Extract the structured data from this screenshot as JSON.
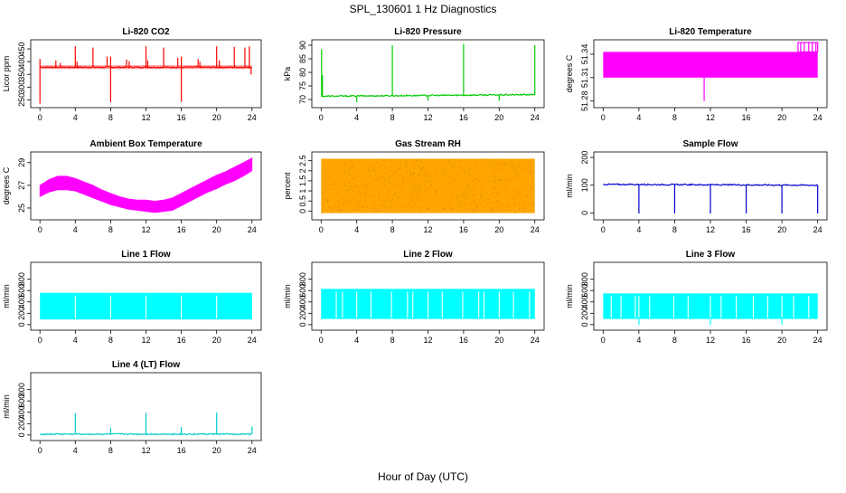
{
  "figure": {
    "title": "SPL_130601  1 Hz Diagnostics",
    "xlabel": "Hour of Day (UTC)"
  },
  "chart_data": [
    {
      "type": "line",
      "title": "Li-820 CO2",
      "ylabel": "Licor ppm",
      "color": "#ff0000",
      "xlim": [
        0,
        24
      ],
      "xticks": [
        0,
        4,
        8,
        12,
        16,
        20,
        24
      ],
      "ylim": [
        230,
        475
      ],
      "yticks": [
        250,
        300,
        350,
        400,
        450
      ],
      "baseline": 378,
      "band": [
        371,
        386
      ],
      "spikes": [
        {
          "x": 0.0,
          "y": 235
        },
        {
          "x": 0.0,
          "y": 410
        },
        {
          "x": 1.8,
          "y": 405
        },
        {
          "x": 2.3,
          "y": 395
        },
        {
          "x": 4.0,
          "y": 460
        },
        {
          "x": 4.2,
          "y": 400
        },
        {
          "x": 6.0,
          "y": 455
        },
        {
          "x": 7.6,
          "y": 420
        },
        {
          "x": 8.0,
          "y": 240
        },
        {
          "x": 8.0,
          "y": 420
        },
        {
          "x": 9.8,
          "y": 408
        },
        {
          "x": 10.1,
          "y": 402
        },
        {
          "x": 12.0,
          "y": 460
        },
        {
          "x": 12.2,
          "y": 405
        },
        {
          "x": 14.0,
          "y": 455
        },
        {
          "x": 15.6,
          "y": 415
        },
        {
          "x": 16.0,
          "y": 242
        },
        {
          "x": 16.0,
          "y": 420
        },
        {
          "x": 17.9,
          "y": 410
        },
        {
          "x": 18.1,
          "y": 400
        },
        {
          "x": 20.0,
          "y": 460
        },
        {
          "x": 20.3,
          "y": 405
        },
        {
          "x": 22.0,
          "y": 458
        },
        {
          "x": 23.2,
          "y": 455
        },
        {
          "x": 23.7,
          "y": 460
        },
        {
          "x": 23.9,
          "y": 350
        }
      ]
    },
    {
      "type": "line",
      "title": "Li-820 Pressure",
      "ylabel": "kPa",
      "color": "#00cc00",
      "xlim": [
        0,
        24
      ],
      "xticks": [
        0,
        4,
        8,
        12,
        16,
        20,
        24
      ],
      "ylim": [
        68,
        91
      ],
      "yticks": [
        70,
        75,
        80,
        85,
        90
      ],
      "baseline_start": 71.2,
      "baseline_end": 71.8,
      "spikes": [
        {
          "x": 0.05,
          "y": 88.5
        },
        {
          "x": 0.15,
          "y": 79.0
        },
        {
          "x": 4.0,
          "y": 69.0
        },
        {
          "x": 8.0,
          "y": 90.0
        },
        {
          "x": 12.0,
          "y": 69.5
        },
        {
          "x": 16.0,
          "y": 90.5
        },
        {
          "x": 20.0,
          "y": 69.5
        },
        {
          "x": 24.0,
          "y": 90.0
        }
      ]
    },
    {
      "type": "area",
      "title": "Li-820 Temperature",
      "ylabel": "degrees C",
      "color": "#ff00ff",
      "xlim": [
        0,
        24
      ],
      "xticks": [
        0,
        4,
        8,
        12,
        16,
        20,
        24
      ],
      "ylim": [
        51.275,
        51.355
      ],
      "yticks": [
        51.28,
        51.31,
        51.34
      ],
      "band": [
        51.31,
        51.343
      ],
      "spikes": [
        {
          "x": 11.3,
          "y": 51.28
        },
        {
          "x": 22.1,
          "y": 51.355
        },
        {
          "x": 22.5,
          "y": 51.355
        },
        {
          "x": 23.0,
          "y": 51.355
        },
        {
          "x": 23.4,
          "y": 51.355
        },
        {
          "x": 23.8,
          "y": 51.355
        }
      ]
    },
    {
      "type": "area",
      "title": "Ambient Box Temperature",
      "ylabel": "degrees C",
      "color": "#ff00ff",
      "xlim": [
        0,
        24
      ],
      "xticks": [
        0,
        4,
        8,
        12,
        16,
        20,
        24
      ],
      "ylim": [
        24.2,
        29.7
      ],
      "yticks": [
        25,
        27,
        29
      ],
      "x": [
        0,
        1,
        2,
        3,
        4,
        5,
        6,
        7,
        8,
        9,
        10,
        11,
        12,
        13,
        14,
        15,
        16,
        17,
        18,
        19,
        20,
        21,
        22,
        23,
        24
      ],
      "upper": [
        27.0,
        27.5,
        27.8,
        27.8,
        27.6,
        27.3,
        27.0,
        26.6,
        26.3,
        26.0,
        25.8,
        25.7,
        25.7,
        25.6,
        25.7,
        25.9,
        26.3,
        26.7,
        27.1,
        27.5,
        27.9,
        28.2,
        28.6,
        29.0,
        29.4
      ],
      "lower": [
        26.0,
        26.4,
        26.6,
        26.6,
        26.5,
        26.2,
        25.9,
        25.6,
        25.3,
        25.1,
        24.9,
        24.8,
        24.7,
        24.6,
        24.7,
        24.8,
        25.2,
        25.6,
        26.0,
        26.4,
        26.7,
        27.1,
        27.4,
        27.8,
        28.3
      ]
    },
    {
      "type": "area",
      "title": "Gas Stream RH",
      "ylabel": "percent",
      "color": "#ffa500",
      "xlim": [
        0,
        24
      ],
      "xticks": [
        0,
        4,
        8,
        12,
        16,
        20,
        24
      ],
      "ylim": [
        -0.3,
        2.8
      ],
      "yticks": [
        0.0,
        0.5,
        1.0,
        1.5,
        2.0,
        2.5
      ],
      "band": [
        -0.1,
        2.6
      ]
    },
    {
      "type": "line",
      "title": "Sample Flow",
      "ylabel": "ml/min",
      "color": "#0000cc",
      "xlim": [
        0,
        24
      ],
      "xticks": [
        0,
        4,
        8,
        12,
        16,
        20,
        24
      ],
      "ylim": [
        -15,
        210
      ],
      "yticks": [
        0,
        100,
        200
      ],
      "baseline_start": 103,
      "baseline_end": 100,
      "spikes": [
        {
          "x": 4.0,
          "y": -2
        },
        {
          "x": 8.0,
          "y": -2
        },
        {
          "x": 12.0,
          "y": -2
        },
        {
          "x": 16.0,
          "y": -2
        },
        {
          "x": 20.0,
          "y": -2
        },
        {
          "x": 24.0,
          "y": -2
        }
      ]
    },
    {
      "type": "area",
      "title": "Line 1 Flow",
      "ylabel": "ml/min",
      "color": "#00ffff",
      "xlim": [
        0,
        24
      ],
      "xticks": [
        0,
        4,
        8,
        12,
        16,
        20,
        24
      ],
      "ylim": [
        -50,
        1050
      ],
      "yticks": [
        0,
        200,
        400,
        600,
        800
      ],
      "band": [
        90,
        560
      ],
      "gaps": [
        4.0,
        8.0,
        12.0,
        16.0,
        20.0
      ]
    },
    {
      "type": "area",
      "title": "Line 2 Flow",
      "ylabel": "ml/min",
      "color": "#00ffff",
      "xlim": [
        0,
        24
      ],
      "xticks": [
        0,
        4,
        8,
        12,
        16,
        20,
        24
      ],
      "ylim": [
        -50,
        1050
      ],
      "yticks": [
        0,
        200,
        400,
        600,
        800
      ],
      "band": [
        100,
        630
      ],
      "gaps": [
        1.7,
        2.4,
        4.0,
        5.6,
        7.9,
        9.7,
        10.3,
        12.0,
        13.6,
        15.9,
        17.7,
        18.3,
        20.0,
        21.6,
        23.4
      ]
    },
    {
      "type": "area",
      "title": "Line 3 Flow",
      "ylabel": "ml/min",
      "color": "#00ffff",
      "xlim": [
        0,
        24
      ],
      "xticks": [
        0,
        4,
        8,
        12,
        16,
        20,
        24
      ],
      "ylim": [
        -50,
        1050
      ],
      "yticks": [
        0,
        200,
        400,
        600,
        800
      ],
      "band": [
        100,
        550
      ],
      "gaps": [
        0.9,
        2.0,
        3.6,
        4.0,
        5.2,
        7.9,
        9.5,
        12.0,
        13.2,
        14.9,
        16.8,
        18.4,
        20.0,
        21.3,
        23.0
      ],
      "dips": [
        4.0,
        12.0,
        20.0
      ]
    },
    {
      "type": "line",
      "title": "Line 4 (LT) Flow",
      "ylabel": "ml/min",
      "color": "#00cccc",
      "xlim": [
        0,
        24
      ],
      "xticks": [
        0,
        4,
        8,
        12,
        16,
        20,
        24
      ],
      "ylim": [
        -50,
        1050
      ],
      "yticks": [
        0,
        200,
        400,
        600,
        800
      ],
      "baseline_start": 15,
      "baseline_end": 15,
      "spikes": [
        {
          "x": 4.0,
          "y": 380
        },
        {
          "x": 8.0,
          "y": 130
        },
        {
          "x": 12.0,
          "y": 390
        },
        {
          "x": 16.0,
          "y": 140
        },
        {
          "x": 20.0,
          "y": 395
        },
        {
          "x": 24.0,
          "y": 150
        }
      ]
    }
  ]
}
